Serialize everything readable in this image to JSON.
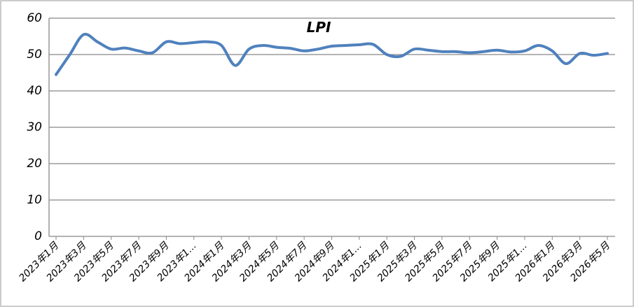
{
  "chart_data": {
    "type": "line",
    "title": "LPI",
    "categories": [
      "2023年1月",
      null,
      "2023年3月",
      null,
      "2023年5月",
      null,
      "2023年7月",
      null,
      "2023年9月",
      null,
      "2023年1...",
      null,
      "2024年1月",
      null,
      "2024年3月",
      null,
      "2024年5月",
      null,
      "2024年7月",
      null,
      "2024年9月",
      null,
      "2024年1...",
      null,
      "2025年1月",
      null,
      "2025年3月",
      null,
      "2025年5月",
      null,
      "2025年7月",
      null,
      "2025年9月",
      null,
      "2025年1...",
      null,
      "2026年1月",
      null,
      "2026年3月",
      null,
      "2026年5月"
    ],
    "series": [
      {
        "name": "LPI",
        "color": "#4f81bd",
        "values": [
          44.5,
          50,
          55.5,
          53.5,
          51.5,
          51.8,
          51,
          50.5,
          53.5,
          53,
          53.3,
          53.5,
          52.5,
          47,
          51.5,
          52.5,
          52,
          51.7,
          51,
          51.5,
          52.3,
          52.5,
          52.7,
          52.8,
          50,
          49.5,
          51.5,
          51.2,
          50.8,
          50.8,
          50.5,
          50.8,
          51.2,
          50.7,
          51,
          52.5,
          51,
          47.5,
          50.3,
          49.8,
          50.3
        ]
      }
    ],
    "ylim": [
      0,
      60
    ],
    "yticks": [
      0,
      10,
      20,
      30,
      40,
      50,
      60
    ],
    "grid": true
  }
}
